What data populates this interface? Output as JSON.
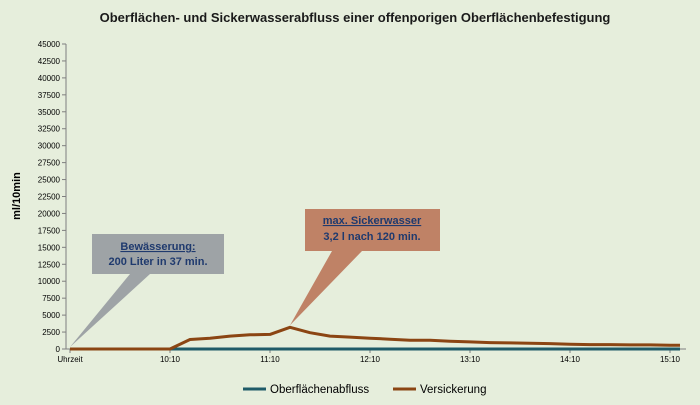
{
  "chart_data": {
    "type": "line",
    "title": "Oberflächen- und Sickerwasserabfluss einer offenporigen Oberflächenbefestigung",
    "ylabel": "ml/10min",
    "xlabel": "",
    "ylim": [
      0,
      45000
    ],
    "yticks": [
      0,
      2500,
      5000,
      7500,
      10000,
      12500,
      15000,
      17500,
      20000,
      22500,
      25000,
      27500,
      30000,
      32500,
      35000,
      37500,
      40000,
      42500,
      45000
    ],
    "xlim": [
      0,
      30
    ],
    "x_tick_labels": [
      {
        "x": 0,
        "label": "Uhrzeit"
      },
      {
        "x": 5,
        "label": "10:10"
      },
      {
        "x": 10,
        "label": "11:10"
      },
      {
        "x": 15,
        "label": "12:10"
      },
      {
        "x": 20,
        "label": "13:10"
      },
      {
        "x": 25,
        "label": "14:10"
      },
      {
        "x": 30,
        "label": "15:10"
      }
    ],
    "x": [
      0,
      1,
      2,
      3,
      4,
      5,
      6,
      7,
      8,
      9,
      10,
      11,
      12,
      13,
      14,
      15,
      16,
      17,
      18,
      19,
      20,
      21,
      22,
      23,
      24,
      25,
      26,
      27,
      28,
      29,
      30,
      30.5
    ],
    "series": [
      {
        "name": "Oberflächenabfluss",
        "color": "#1f5b68",
        "values": [
          0,
          0,
          0,
          0,
          0,
          0,
          0,
          0,
          0,
          0,
          0,
          0,
          0,
          0,
          0,
          0,
          0,
          0,
          0,
          0,
          0,
          0,
          0,
          0,
          0,
          0,
          0,
          0,
          0,
          0,
          0,
          0
        ]
      },
      {
        "name": "Versickerung",
        "color": "#8b4513",
        "values": [
          0,
          0,
          0,
          0,
          0,
          0,
          1400,
          1600,
          1900,
          2100,
          2150,
          3200,
          2400,
          1900,
          1750,
          1600,
          1450,
          1300,
          1300,
          1150,
          1050,
          950,
          900,
          850,
          800,
          700,
          650,
          650,
          600,
          600,
          550,
          550
        ]
      }
    ],
    "annotations": [
      {
        "id": "bewaesserung",
        "line1": "Bewässerung:",
        "line2": "200 Liter in 37 min.",
        "color": "#9ea3a6"
      },
      {
        "id": "max-sicker",
        "line1": "max. Sickerwasser",
        "line2": "3,2 l nach 120 min.",
        "color": "#bf8266"
      }
    ],
    "grid": false,
    "legend": "bottom"
  }
}
